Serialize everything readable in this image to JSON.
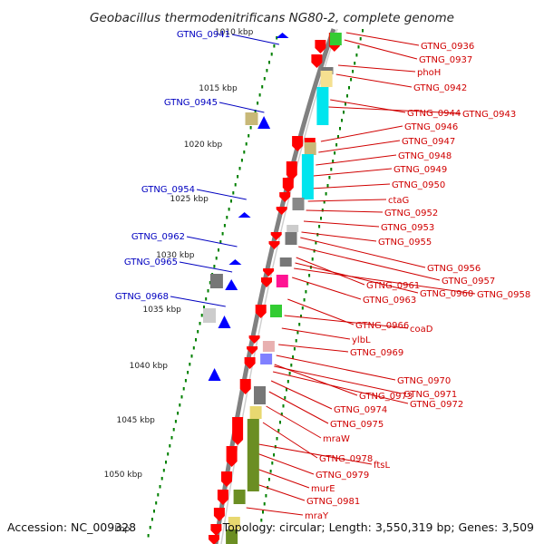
{
  "title": "Geobacillus thermodenitrificans NG80-2, complete genome",
  "footer": {
    "accession": "Accession: NC_009328",
    "info": "Topology: circular; Length: 3,550,319 bp; Genes: 3,509"
  },
  "colors": {
    "forward": "#0000ff",
    "reverse": "#ff0000",
    "label_forward": "#0000c0",
    "label_reverse": "#d00000",
    "kbp_dots": "#008000",
    "backbone": "#808080"
  },
  "kbp_ticks": [
    "1010 kbp",
    "1015 kbp",
    "1020 kbp",
    "1025 kbp",
    "1030 kbp",
    "1035 kbp",
    "1040 kbp",
    "1045 kbp",
    "1050 kbp",
    "kbp"
  ],
  "forward_labels": [
    "GTNG_0941",
    "GTNG_0945",
    "GTNG_0954",
    "GTNG_0962",
    "GTNG_0965",
    "GTNG_0968"
  ],
  "reverse_labels": [
    "GTNG_0936",
    "GTNG_0937",
    "phoH",
    "GTNG_0942",
    "GTNG_0944",
    "GTNG_0943",
    "GTNG_0946",
    "GTNG_0947",
    "GTNG_0948",
    "GTNG_0949",
    "GTNG_0950",
    "ctaG",
    "GTNG_0952",
    "GTNG_0953",
    "GTNG_0955",
    "GTNG_0956",
    "GTNG_0957",
    "GTNG_0961",
    "GTNG_0960",
    "GTNG_0958",
    "GTNG_0963",
    "GTNG_0966",
    "coaD",
    "ylbL",
    "GTNG_0969",
    "GTNG_0970",
    "GTNG_0973",
    "GTNG_0971",
    "GTNG_0972",
    "GTNG_0974",
    "GTNG_0975",
    "mraW",
    "GTNG_0978",
    "ftsL",
    "GTNG_0979",
    "murE",
    "GTNG_0981",
    "mraY"
  ]
}
